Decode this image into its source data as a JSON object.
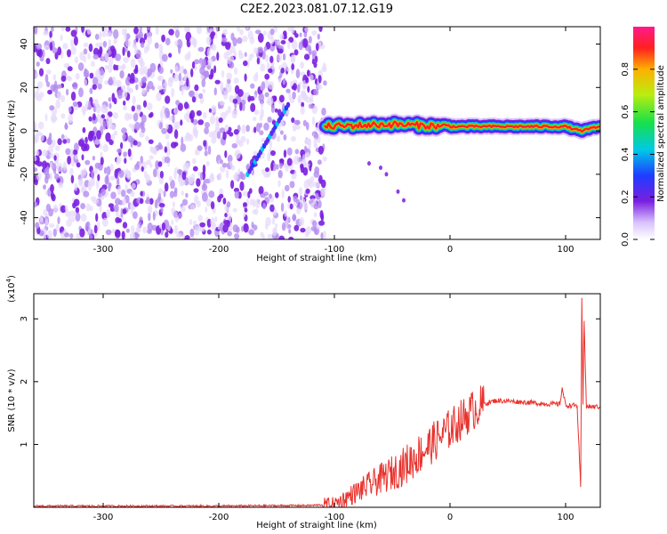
{
  "title": "C2E2.2023.081.07.12.G19",
  "colors": {
    "scatter_purple": "#7a1fe0",
    "scatter_light": "#c9a6f5",
    "snr_line": "#e8332e"
  },
  "chart_data": [
    {
      "type": "heatmap",
      "xlabel": "Height of straight line (km)",
      "ylabel": "Frequency (Hz)",
      "xlim": [
        -360,
        130
      ],
      "ylim": [
        -50,
        48
      ],
      "xticks": [
        -300,
        -200,
        -100,
        0,
        100
      ],
      "yticks": [
        -40,
        -20,
        0,
        20,
        40
      ],
      "grid": false,
      "noise_region_x": [
        -360,
        -108
      ],
      "signal": [
        {
          "x": -108,
          "y": 2
        },
        {
          "x": -50,
          "y": 3
        },
        {
          "x": 0,
          "y": 2
        },
        {
          "x": 50,
          "y": 2
        },
        {
          "x": 100,
          "y": 2
        },
        {
          "x": 113,
          "y": 0
        },
        {
          "x": 130,
          "y": 2
        }
      ],
      "diagonal_feature": {
        "x": [
          -175,
          -140
        ],
        "y": [
          -20,
          12
        ]
      },
      "colorbar": {
        "label": "Normalized spectral amplitude",
        "range": [
          0.0,
          1.0
        ],
        "ticks": [
          0.0,
          0.2,
          0.4,
          0.6,
          0.8
        ]
      }
    },
    {
      "type": "line",
      "xlabel": "Height of straight line (km)",
      "ylabel": "SNR (10 * v/v)",
      "yscale_label": "(x10",
      "yscale_exp": "4",
      "yscale_close": ")",
      "xlim": [
        -360,
        130
      ],
      "ylim": [
        0,
        3.4
      ],
      "xticks": [
        -300,
        -200,
        -100,
        0,
        100
      ],
      "yticks": [
        1,
        2,
        3
      ],
      "grid": false,
      "series": [
        {
          "x": [
            -360,
            -300,
            -200,
            -120,
            -100,
            -90,
            -80,
            -70,
            -60,
            -50,
            -40,
            -30,
            -20,
            -10,
            0,
            10,
            20,
            30,
            40,
            60,
            80,
            95,
            97,
            100,
            110,
            113,
            114,
            115,
            116,
            118,
            130
          ],
          "y": [
            0.02,
            0.02,
            0.02,
            0.03,
            0.05,
            0.15,
            0.25,
            0.35,
            0.45,
            0.55,
            0.65,
            0.8,
            0.95,
            1.1,
            1.25,
            1.4,
            1.55,
            1.65,
            1.7,
            1.68,
            1.65,
            1.64,
            1.9,
            1.62,
            1.62,
            0.3,
            3.35,
            1.6,
            2.95,
            1.6,
            1.6
          ]
        }
      ]
    }
  ]
}
